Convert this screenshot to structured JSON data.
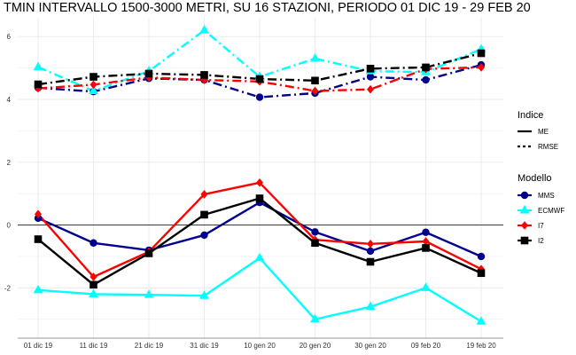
{
  "chart_data": {
    "type": "line",
    "title": "TMIN INTERVALLO 1500-3000 METRI, SU 16 STAZIONI, PERIODO 01 DIC 19  -  29 FEB 20",
    "xlabel": "",
    "ylabel": "",
    "categories": [
      "01 dic 19",
      "11 dic 19",
      "21 dic 19",
      "31 dic 19",
      "10 gen 20",
      "20 gen 20",
      "30 gen 20",
      "09 feb 20",
      "19 feb 20"
    ],
    "yticks": [
      -2,
      0,
      2,
      4,
      6
    ],
    "ylim": [
      -3.6,
      6.6
    ],
    "grid": true,
    "zero_line": true,
    "series": [
      {
        "name": "MMS",
        "indice": "ME",
        "color": "#00008b",
        "marker": "circle",
        "values": [
          0.22,
          -0.57,
          -0.8,
          -0.32,
          0.72,
          -0.22,
          -0.83,
          -0.23,
          -1.0
        ]
      },
      {
        "name": "ECMWF",
        "indice": "ME",
        "color": "#00ffff",
        "marker": "triangle",
        "values": [
          -2.07,
          -2.2,
          -2.22,
          -2.25,
          -1.05,
          -3.0,
          -2.6,
          -2.0,
          -3.07
        ]
      },
      {
        "name": "I7",
        "indice": "ME",
        "color": "#ff0000",
        "marker": "diamond",
        "values": [
          0.35,
          -1.65,
          -0.85,
          0.98,
          1.35,
          -0.47,
          -0.6,
          -0.52,
          -1.4
        ]
      },
      {
        "name": "I2",
        "indice": "ME",
        "color": "#000000",
        "marker": "square",
        "values": [
          -0.45,
          -1.9,
          -0.9,
          0.33,
          0.85,
          -0.57,
          -1.17,
          -0.73,
          -1.53
        ]
      },
      {
        "name": "MMS",
        "indice": "RMSE",
        "color": "#00008b",
        "marker": "circle",
        "values": [
          4.37,
          4.25,
          4.67,
          4.62,
          4.07,
          4.2,
          4.72,
          4.62,
          5.1
        ]
      },
      {
        "name": "ECMWF",
        "indice": "RMSE",
        "color": "#00ffff",
        "marker": "triangle",
        "values": [
          5.03,
          4.27,
          4.9,
          6.2,
          4.72,
          5.3,
          4.9,
          4.87,
          5.6
        ]
      },
      {
        "name": "I7",
        "indice": "RMSE",
        "color": "#ff0000",
        "marker": "diamond",
        "values": [
          4.35,
          4.47,
          4.7,
          4.62,
          4.57,
          4.27,
          4.32,
          4.97,
          5.02
        ]
      },
      {
        "name": "I2",
        "indice": "RMSE",
        "color": "#000000",
        "marker": "square",
        "values": [
          4.48,
          4.72,
          4.82,
          4.78,
          4.65,
          4.6,
          4.98,
          5.02,
          5.47
        ]
      }
    ],
    "legend": {
      "placement": "right",
      "indice_title": "Indice",
      "indice_items": [
        {
          "label": "ME",
          "linestyle": "solid"
        },
        {
          "label": "RMSE",
          "linestyle": "dotdash"
        }
      ],
      "modello_title": "Modello",
      "modello_items": [
        {
          "label": "MMS",
          "color": "#00008b",
          "marker": "circle"
        },
        {
          "label": "ECMWF",
          "color": "#00ffff",
          "marker": "triangle"
        },
        {
          "label": "I7",
          "color": "#ff0000",
          "marker": "diamond"
        },
        {
          "label": "I2",
          "color": "#000000",
          "marker": "square"
        }
      ]
    },
    "colors": {
      "grid": "#ebebeb",
      "axis": "#333333",
      "zero_line": "#000000"
    }
  }
}
